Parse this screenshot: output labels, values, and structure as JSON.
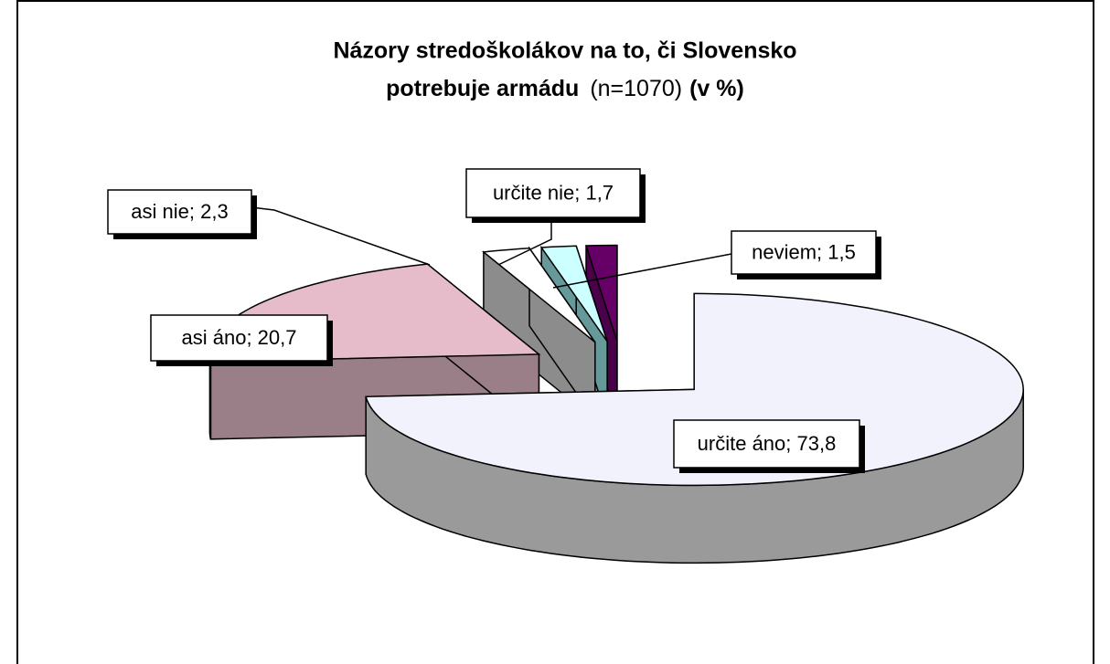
{
  "chart_data": {
    "type": "pie3d",
    "title": [
      "Názory stredoškolákov na to, či Slovensko",
      "potrebuje  armádu"
    ],
    "subtitle": "(n=1070)",
    "unit": "(v %)",
    "categories": [
      "určite áno",
      "asi áno",
      "asi nie",
      "určite nie",
      "neviem"
    ],
    "values": [
      73.8,
      20.7,
      2.3,
      1.7,
      1.5
    ],
    "value_labels": [
      "73,8",
      "20,7",
      "2,3",
      "1,7",
      "1,5"
    ],
    "label_separator": "; ",
    "colors": [
      "#f2f2fc",
      "#e6bccb",
      "#ffffff",
      "#ccffff",
      "#660066"
    ],
    "side_colors": [
      "#9a9a9a",
      "#9a7f88",
      "#8c8c8c",
      "#669999",
      "#4a004a"
    ]
  }
}
